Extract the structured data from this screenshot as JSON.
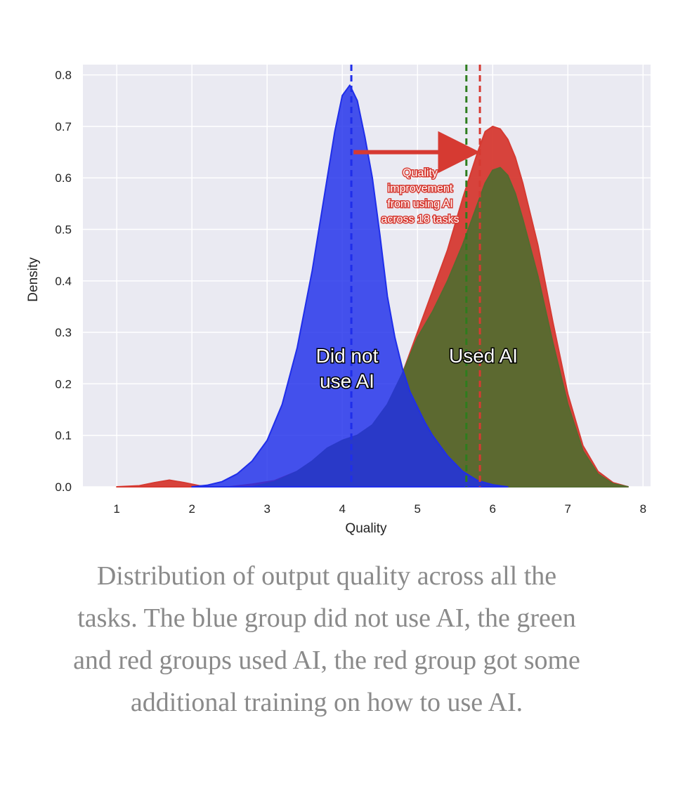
{
  "chart_data": {
    "type": "area",
    "xlabel": "Quality",
    "ylabel": "Density",
    "xlim": [
      0.55,
      8.1
    ],
    "ylim": [
      0,
      0.82
    ],
    "x_ticks": [
      "1",
      "2",
      "3",
      "4",
      "5",
      "6",
      "7",
      "8"
    ],
    "y_ticks": [
      "0.0",
      "0.1",
      "0.2",
      "0.3",
      "0.4",
      "0.5",
      "0.6",
      "0.7",
      "0.8"
    ],
    "grid": true,
    "series": [
      {
        "key": "red",
        "color": "#d63a32",
        "mean_line": 5.83,
        "x": [
          1.0,
          1.3,
          1.5,
          1.7,
          1.9,
          2.1,
          2.3,
          2.5,
          2.8,
          3.1,
          3.4,
          3.6,
          3.8,
          4.0,
          4.2,
          4.4,
          4.6,
          4.8,
          5.0,
          5.2,
          5.4,
          5.6,
          5.8,
          5.9,
          6.0,
          6.1,
          6.2,
          6.3,
          6.4,
          6.6,
          6.8,
          7.0,
          7.2,
          7.4,
          7.6,
          7.8
        ],
        "y": [
          0.0,
          0.002,
          0.008,
          0.013,
          0.008,
          0.002,
          0.0,
          0.0,
          0.005,
          0.012,
          0.03,
          0.05,
          0.075,
          0.09,
          0.1,
          0.12,
          0.16,
          0.22,
          0.3,
          0.38,
          0.46,
          0.56,
          0.65,
          0.69,
          0.7,
          0.695,
          0.675,
          0.64,
          0.59,
          0.47,
          0.32,
          0.18,
          0.08,
          0.03,
          0.008,
          0.0
        ]
      },
      {
        "key": "green",
        "color": "#556b2f",
        "mean_line": 5.65,
        "x": [
          2.8,
          3.1,
          3.4,
          3.6,
          3.8,
          4.0,
          4.2,
          4.4,
          4.6,
          4.8,
          5.0,
          5.2,
          5.4,
          5.6,
          5.8,
          5.9,
          6.0,
          6.1,
          6.2,
          6.3,
          6.4,
          6.6,
          6.8,
          7.0,
          7.2,
          7.4,
          7.6,
          7.8
        ],
        "y": [
          0.0,
          0.01,
          0.03,
          0.05,
          0.075,
          0.09,
          0.1,
          0.12,
          0.16,
          0.22,
          0.29,
          0.34,
          0.4,
          0.47,
          0.55,
          0.59,
          0.615,
          0.62,
          0.605,
          0.57,
          0.52,
          0.41,
          0.28,
          0.16,
          0.07,
          0.025,
          0.006,
          0.0
        ]
      },
      {
        "key": "blue",
        "color": "#1f2eea",
        "mean_line": 4.12,
        "x": [
          2.0,
          2.2,
          2.4,
          2.6,
          2.8,
          3.0,
          3.2,
          3.4,
          3.6,
          3.8,
          3.9,
          4.0,
          4.1,
          4.2,
          4.3,
          4.4,
          4.5,
          4.6,
          4.7,
          4.8,
          4.9,
          5.0,
          5.1,
          5.2,
          5.4,
          5.6,
          5.8,
          6.0,
          6.2
        ],
        "y": [
          0.0,
          0.003,
          0.01,
          0.025,
          0.05,
          0.09,
          0.16,
          0.27,
          0.42,
          0.6,
          0.69,
          0.76,
          0.78,
          0.75,
          0.68,
          0.6,
          0.49,
          0.37,
          0.29,
          0.23,
          0.185,
          0.155,
          0.125,
          0.1,
          0.06,
          0.03,
          0.012,
          0.004,
          0.0
        ]
      }
    ],
    "labels": {
      "blue_line1": "Did not",
      "blue_line2": "use AI",
      "ai": "Used AI",
      "annotation": [
        "Quality",
        "improvement",
        "from using AI",
        "across 18 tasks"
      ]
    },
    "arrow": {
      "from_x": 4.15,
      "to_x": 5.72,
      "y": 0.65,
      "color": "#d63a32"
    }
  },
  "caption": "Distribution of output quality across all the tasks. The blue group did not use AI, the green and red groups used AI, the red group got some additional training on how to use AI."
}
